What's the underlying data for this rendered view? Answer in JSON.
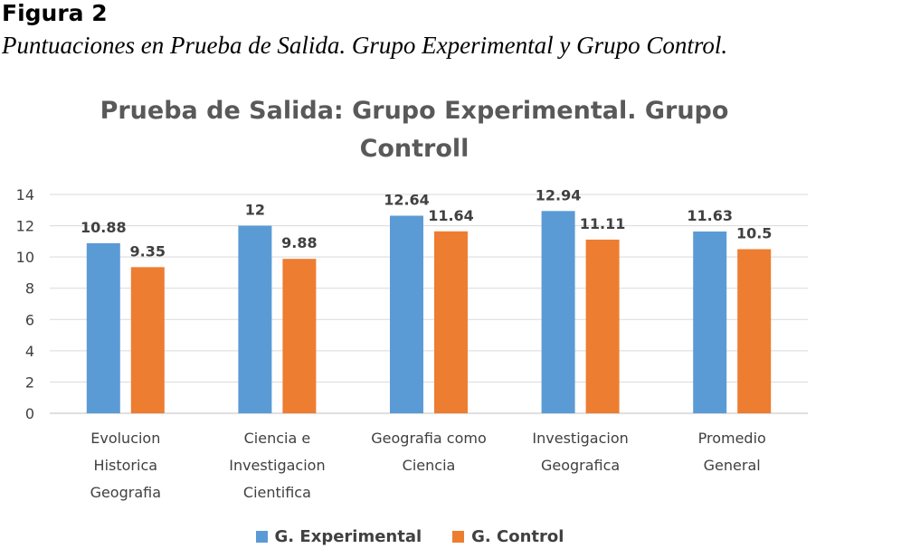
{
  "figure": {
    "label": "Figura 2",
    "caption": "Puntuaciones en Prueba de Salida. Grupo Experimental y Grupo Control."
  },
  "chart_data": {
    "type": "bar",
    "title": "Prueba de Salida: Grupo Experimental. Grupo Controll",
    "categories": [
      [
        "Evolucion",
        "Historica",
        "Geografia"
      ],
      [
        "Ciencia e",
        "Investigacion",
        "Cientifica"
      ],
      [
        "Geografia como",
        "Ciencia"
      ],
      [
        "Investigacion",
        "Geografica"
      ],
      [
        "Promedio",
        "General"
      ]
    ],
    "series": [
      {
        "name": "G. Experimental",
        "color": "#5b9bd5",
        "values": [
          10.88,
          12,
          12.64,
          12.94,
          11.63
        ],
        "labels": [
          "10.88",
          "12",
          "12.64",
          "12.94",
          "11.63"
        ]
      },
      {
        "name": "G. Control",
        "color": "#ed7d31",
        "values": [
          9.35,
          9.88,
          11.64,
          11.11,
          10.5
        ],
        "labels": [
          "9.35",
          "9.88",
          "11.64",
          "11.11",
          "10.5"
        ]
      }
    ],
    "ylim": [
      0,
      14
    ],
    "yticks": [
      0,
      2,
      4,
      6,
      8,
      10,
      12,
      14
    ],
    "grid": true,
    "legend_position": "bottom"
  }
}
